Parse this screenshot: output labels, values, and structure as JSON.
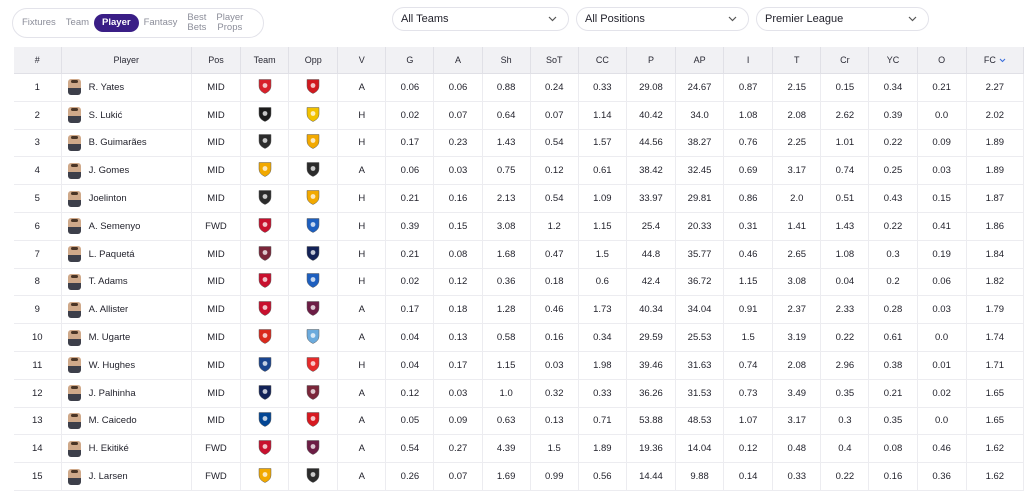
{
  "nav": {
    "items": [
      {
        "label": "Fixtures",
        "active": false
      },
      {
        "label": "Team",
        "active": false
      },
      {
        "label": "Player",
        "active": true
      },
      {
        "label": "Fantasy",
        "active": false
      },
      {
        "label": "Best\nBets",
        "active": false
      },
      {
        "label": "Player\nProps",
        "active": false
      }
    ]
  },
  "filters": {
    "teams": "All Teams",
    "positions": "All Positions",
    "league": "Premier League"
  },
  "table": {
    "columns": [
      "#",
      "Player",
      "Pos",
      "Team",
      "Opp",
      "V",
      "G",
      "A",
      "Sh",
      "SoT",
      "CC",
      "P",
      "AP",
      "I",
      "T",
      "Cr",
      "YC",
      "O",
      "FC"
    ],
    "sort_column": "FC",
    "rows": [
      {
        "rank": "1",
        "name": "R. Yates",
        "pos": "MID",
        "team": "forest",
        "opp": "arsenal",
        "v": "A",
        "stats": [
          "0.06",
          "0.06",
          "0.88",
          "0.24",
          "0.33",
          "29.08",
          "24.67",
          "0.87",
          "2.15",
          "0.15",
          "0.34",
          "0.21",
          "2.27"
        ]
      },
      {
        "rank": "2",
        "name": "S. Lukić",
        "pos": "MID",
        "team": "fulham",
        "opp": "leeds",
        "v": "H",
        "stats": [
          "0.02",
          "0.07",
          "0.64",
          "0.07",
          "1.14",
          "40.42",
          "34.0",
          "1.08",
          "2.08",
          "2.62",
          "0.39",
          "0.0",
          "2.02"
        ]
      },
      {
        "rank": "3",
        "name": "B. Guimarães",
        "pos": "MID",
        "team": "newcastle",
        "opp": "wolves",
        "v": "H",
        "stats": [
          "0.17",
          "0.23",
          "1.43",
          "0.54",
          "1.57",
          "44.56",
          "38.27",
          "0.76",
          "2.25",
          "1.01",
          "0.22",
          "0.09",
          "1.89"
        ]
      },
      {
        "rank": "4",
        "name": "J. Gomes",
        "pos": "MID",
        "team": "wolves",
        "opp": "newcastle",
        "v": "A",
        "stats": [
          "0.06",
          "0.03",
          "0.75",
          "0.12",
          "0.61",
          "38.42",
          "32.45",
          "0.69",
          "3.17",
          "0.74",
          "0.25",
          "0.03",
          "1.89"
        ]
      },
      {
        "rank": "5",
        "name": "Joelinton",
        "pos": "MID",
        "team": "newcastle",
        "opp": "wolves",
        "v": "H",
        "stats": [
          "0.21",
          "0.16",
          "2.13",
          "0.54",
          "1.09",
          "33.97",
          "29.81",
          "0.86",
          "2.0",
          "0.51",
          "0.43",
          "0.15",
          "1.87"
        ]
      },
      {
        "rank": "6",
        "name": "A. Semenyo",
        "pos": "FWD",
        "team": "bournemouth",
        "opp": "brighton",
        "v": "H",
        "stats": [
          "0.39",
          "0.15",
          "3.08",
          "1.2",
          "1.15",
          "25.4",
          "20.33",
          "0.31",
          "1.41",
          "1.43",
          "0.22",
          "0.41",
          "1.86"
        ]
      },
      {
        "rank": "7",
        "name": "L. Paquetá",
        "pos": "MID",
        "team": "westham",
        "opp": "spurs",
        "v": "H",
        "stats": [
          "0.21",
          "0.08",
          "1.68",
          "0.47",
          "1.5",
          "44.8",
          "35.77",
          "0.46",
          "2.65",
          "1.08",
          "0.3",
          "0.19",
          "1.84"
        ]
      },
      {
        "rank": "8",
        "name": "T. Adams",
        "pos": "MID",
        "team": "bournemouth",
        "opp": "brighton",
        "v": "H",
        "stats": [
          "0.02",
          "0.12",
          "0.36",
          "0.18",
          "0.6",
          "42.4",
          "36.72",
          "1.15",
          "3.08",
          "0.04",
          "0.2",
          "0.06",
          "1.82"
        ]
      },
      {
        "rank": "9",
        "name": "A. Allister",
        "pos": "MID",
        "team": "liverpool",
        "opp": "burnley",
        "v": "A",
        "stats": [
          "0.17",
          "0.18",
          "1.28",
          "0.46",
          "1.73",
          "40.34",
          "34.04",
          "0.91",
          "2.37",
          "2.33",
          "0.28",
          "0.03",
          "1.79"
        ]
      },
      {
        "rank": "10",
        "name": "M. Ugarte",
        "pos": "MID",
        "team": "manutd",
        "opp": "mancity",
        "v": "A",
        "stats": [
          "0.04",
          "0.13",
          "0.58",
          "0.16",
          "0.34",
          "29.59",
          "25.53",
          "1.5",
          "3.19",
          "0.22",
          "0.61",
          "0.0",
          "1.74"
        ]
      },
      {
        "rank": "11",
        "name": "W. Hughes",
        "pos": "MID",
        "team": "palace",
        "opp": "sunderland",
        "v": "H",
        "stats": [
          "0.04",
          "0.17",
          "1.15",
          "0.03",
          "1.98",
          "39.46",
          "31.63",
          "0.74",
          "2.08",
          "2.96",
          "0.38",
          "0.01",
          "1.71"
        ]
      },
      {
        "rank": "12",
        "name": "J. Palhinha",
        "pos": "MID",
        "team": "spurs",
        "opp": "westham",
        "v": "A",
        "stats": [
          "0.12",
          "0.03",
          "1.0",
          "0.32",
          "0.33",
          "36.26",
          "31.53",
          "0.73",
          "3.49",
          "0.35",
          "0.21",
          "0.02",
          "1.65"
        ]
      },
      {
        "rank": "13",
        "name": "M. Caicedo",
        "pos": "MID",
        "team": "chelsea",
        "opp": "brentford",
        "v": "A",
        "stats": [
          "0.05",
          "0.09",
          "0.63",
          "0.13",
          "0.71",
          "53.88",
          "48.53",
          "1.07",
          "3.17",
          "0.3",
          "0.35",
          "0.0",
          "1.65"
        ]
      },
      {
        "rank": "14",
        "name": "H. Ekitiké",
        "pos": "FWD",
        "team": "liverpool",
        "opp": "burnley",
        "v": "A",
        "stats": [
          "0.54",
          "0.27",
          "4.39",
          "1.5",
          "1.89",
          "19.36",
          "14.04",
          "0.12",
          "0.48",
          "0.4",
          "0.08",
          "0.46",
          "1.62"
        ]
      },
      {
        "rank": "15",
        "name": "J. Larsen",
        "pos": "FWD",
        "team": "wolves",
        "opp": "newcastle",
        "v": "A",
        "stats": [
          "0.26",
          "0.07",
          "1.69",
          "0.99",
          "0.56",
          "14.44",
          "9.88",
          "0.14",
          "0.33",
          "0.22",
          "0.16",
          "0.36",
          "1.62"
        ]
      }
    ]
  },
  "crest_colors": {
    "forest": "#d8202a",
    "arsenal": "#d0191f",
    "fulham": "#1c1c1c",
    "leeds": "#f2c200",
    "newcastle": "#2b2b2b",
    "wolves": "#f2a900",
    "bournemouth": "#c8102e",
    "brighton": "#1d5fbf",
    "westham": "#7a263a",
    "spurs": "#132257",
    "liverpool": "#c8102e",
    "burnley": "#6c1d45",
    "manutd": "#da291c",
    "mancity": "#6cabdd",
    "palace": "#1b458f",
    "sunderland": "#e62b2b",
    "chelsea": "#034694",
    "brentford": "#d71920"
  }
}
